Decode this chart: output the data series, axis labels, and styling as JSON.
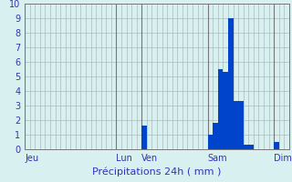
{
  "xlabel": "Précipitations 24h ( mm )",
  "ylim": [
    0,
    10
  ],
  "xlim": [
    0,
    52
  ],
  "bar_color": "#0044cc",
  "background_color": "#d8f0f0",
  "grid_color": "#aabbbb",
  "label_color": "#3333bb",
  "day_labels": [
    "Jeu",
    "Lun",
    "Ven",
    "Sam",
    "Dim"
  ],
  "day_positions": [
    0.5,
    18.5,
    23.5,
    36.5,
    49.5
  ],
  "day_line_positions": [
    0,
    18,
    23,
    36,
    49
  ],
  "n_bars": 52,
  "bar_values": [
    0,
    0,
    0,
    0,
    0,
    0,
    0,
    0,
    0,
    0,
    0,
    0,
    0,
    0,
    0,
    0,
    0,
    0,
    0,
    0,
    0,
    0,
    0,
    1.6,
    0,
    0,
    0,
    0,
    0,
    0,
    0,
    0,
    0,
    0,
    0,
    0,
    1.0,
    1.8,
    5.5,
    5.3,
    9.0,
    3.3,
    3.3,
    0.3,
    0.3,
    0,
    0,
    0,
    0,
    0.5,
    0,
    0
  ],
  "axis_line_color": "#777777",
  "yticks": [
    0,
    1,
    2,
    3,
    4,
    5,
    6,
    7,
    8,
    9,
    10
  ],
  "xlabel_fontsize": 8,
  "tick_fontsize": 7,
  "day_label_fontsize": 7
}
